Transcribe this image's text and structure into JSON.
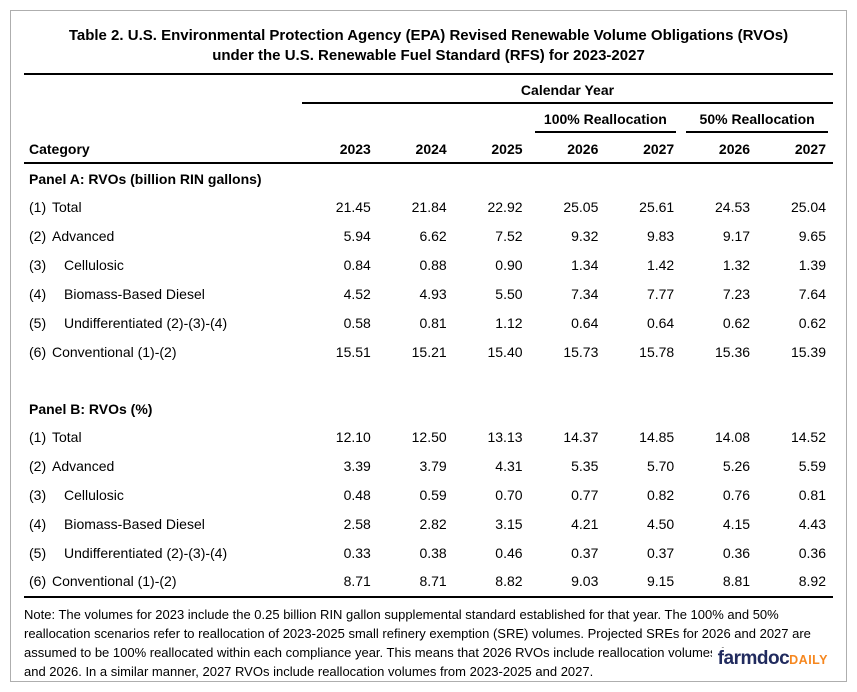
{
  "title": {
    "line1": "Table 2. U.S. Environmental Protection Agency (EPA) Revised Renewable Volume Obligations (RVOs)",
    "line2": "under the U.S. Renewable Fuel Standard (RFS) for 2023-2027"
  },
  "header": {
    "calendar_year": "Calendar Year",
    "realloc_100": "100% Reallocation",
    "realloc_50": "50% Reallocation",
    "category_label": "Category",
    "years": [
      "2023",
      "2024",
      "2025",
      "2026",
      "2027",
      "2026",
      "2027"
    ]
  },
  "panels": [
    {
      "title": "Panel A: RVOs (billion RIN gallons)",
      "rows": [
        {
          "num": "(1)",
          "label": "Total",
          "indent": false,
          "values": [
            "21.45",
            "21.84",
            "22.92",
            "25.05",
            "25.61",
            "24.53",
            "25.04"
          ]
        },
        {
          "num": "(2)",
          "label": "Advanced",
          "indent": false,
          "values": [
            "5.94",
            "6.62",
            "7.52",
            "9.32",
            "9.83",
            "9.17",
            "9.65"
          ]
        },
        {
          "num": "(3)",
          "label": "Cellulosic",
          "indent": true,
          "values": [
            "0.84",
            "0.88",
            "0.90",
            "1.34",
            "1.42",
            "1.32",
            "1.39"
          ]
        },
        {
          "num": "(4)",
          "label": "Biomass-Based Diesel",
          "indent": true,
          "values": [
            "4.52",
            "4.93",
            "5.50",
            "7.34",
            "7.77",
            "7.23",
            "7.64"
          ]
        },
        {
          "num": "(5)",
          "label": "Undifferentiated (2)-(3)-(4)",
          "indent": true,
          "values": [
            "0.58",
            "0.81",
            "1.12",
            "0.64",
            "0.64",
            "0.62",
            "0.62"
          ]
        },
        {
          "num": "(6)",
          "label": "Conventional (1)-(2)",
          "indent": false,
          "values": [
            "15.51",
            "15.21",
            "15.40",
            "15.73",
            "15.78",
            "15.36",
            "15.39"
          ]
        }
      ]
    },
    {
      "title": "Panel B: RVOs (%)",
      "rows": [
        {
          "num": "(1)",
          "label": "Total",
          "indent": false,
          "values": [
            "12.10",
            "12.50",
            "13.13",
            "14.37",
            "14.85",
            "14.08",
            "14.52"
          ]
        },
        {
          "num": "(2)",
          "label": "Advanced",
          "indent": false,
          "values": [
            "3.39",
            "3.79",
            "4.31",
            "5.35",
            "5.70",
            "5.26",
            "5.59"
          ]
        },
        {
          "num": "(3)",
          "label": "Cellulosic",
          "indent": true,
          "values": [
            "0.48",
            "0.59",
            "0.70",
            "0.77",
            "0.82",
            "0.76",
            "0.81"
          ]
        },
        {
          "num": "(4)",
          "label": "Biomass-Based Diesel",
          "indent": true,
          "values": [
            "2.58",
            "2.82",
            "3.15",
            "4.21",
            "4.50",
            "4.15",
            "4.43"
          ]
        },
        {
          "num": "(5)",
          "label": "Undifferentiated (2)-(3)-(4)",
          "indent": true,
          "values": [
            "0.33",
            "0.38",
            "0.46",
            "0.37",
            "0.37",
            "0.36",
            "0.36"
          ]
        },
        {
          "num": "(6)",
          "label": "Conventional (1)-(2)",
          "indent": false,
          "values": [
            "8.71",
            "8.71",
            "8.82",
            "9.03",
            "9.15",
            "8.81",
            "8.92"
          ]
        }
      ]
    }
  ],
  "note": "Note: The volumes for 2023 include the 0.25 billion RIN gallon supplemental standard established for that year. The 100% and 50% reallocation scenarios refer to reallocation of 2023-2025 small refinery exemption (SRE) volumes.  Projected SREs for 2026 and 2027 are assumed to be 100% reallocated within each compliance year.  This means that 2026 RVOs include reallocation volumes from 2023-2025 and 2026.  In a similar manner, 2027 RVOs include reallocation volumes from 2023-2025 and 2027.",
  "logo": {
    "farmdoc": "farmdoc",
    "daily": "DAILY",
    "navy": "#212b5e",
    "orange": "#f6871f"
  },
  "chart_data": {
    "type": "table",
    "title": "Table 2. U.S. Environmental Protection Agency (EPA) Revised Renewable Volume Obligations (RVOs) under the U.S. Renewable Fuel Standard (RFS) for 2023-2027",
    "column_group": "Calendar Year",
    "columns": [
      "Category",
      "2023",
      "2024",
      "2025",
      "2026 (100% Reallocation)",
      "2027 (100% Reallocation)",
      "2026 (50% Reallocation)",
      "2027 (50% Reallocation)"
    ],
    "sections": [
      {
        "name": "Panel A: RVOs (billion RIN gallons)",
        "rows": [
          [
            "(1) Total",
            21.45,
            21.84,
            22.92,
            25.05,
            25.61,
            24.53,
            25.04
          ],
          [
            "(2) Advanced",
            5.94,
            6.62,
            7.52,
            9.32,
            9.83,
            9.17,
            9.65
          ],
          [
            "(3) Cellulosic",
            0.84,
            0.88,
            0.9,
            1.34,
            1.42,
            1.32,
            1.39
          ],
          [
            "(4) Biomass-Based Diesel",
            4.52,
            4.93,
            5.5,
            7.34,
            7.77,
            7.23,
            7.64
          ],
          [
            "(5) Undifferentiated (2)-(3)-(4)",
            0.58,
            0.81,
            1.12,
            0.64,
            0.64,
            0.62,
            0.62
          ],
          [
            "(6) Conventional (1)-(2)",
            15.51,
            15.21,
            15.4,
            15.73,
            15.78,
            15.36,
            15.39
          ]
        ]
      },
      {
        "name": "Panel B: RVOs (%)",
        "rows": [
          [
            "(1) Total",
            12.1,
            12.5,
            13.13,
            14.37,
            14.85,
            14.08,
            14.52
          ],
          [
            "(2) Advanced",
            3.39,
            3.79,
            4.31,
            5.35,
            5.7,
            5.26,
            5.59
          ],
          [
            "(3) Cellulosic",
            0.48,
            0.59,
            0.7,
            0.77,
            0.82,
            0.76,
            0.81
          ],
          [
            "(4) Biomass-Based Diesel",
            2.58,
            2.82,
            3.15,
            4.21,
            4.5,
            4.15,
            4.43
          ],
          [
            "(5) Undifferentiated (2)-(3)-(4)",
            0.33,
            0.38,
            0.46,
            0.37,
            0.37,
            0.36,
            0.36
          ],
          [
            "(6) Conventional (1)-(2)",
            8.71,
            8.71,
            8.82,
            9.03,
            9.15,
            8.81,
            8.92
          ]
        ]
      }
    ]
  }
}
